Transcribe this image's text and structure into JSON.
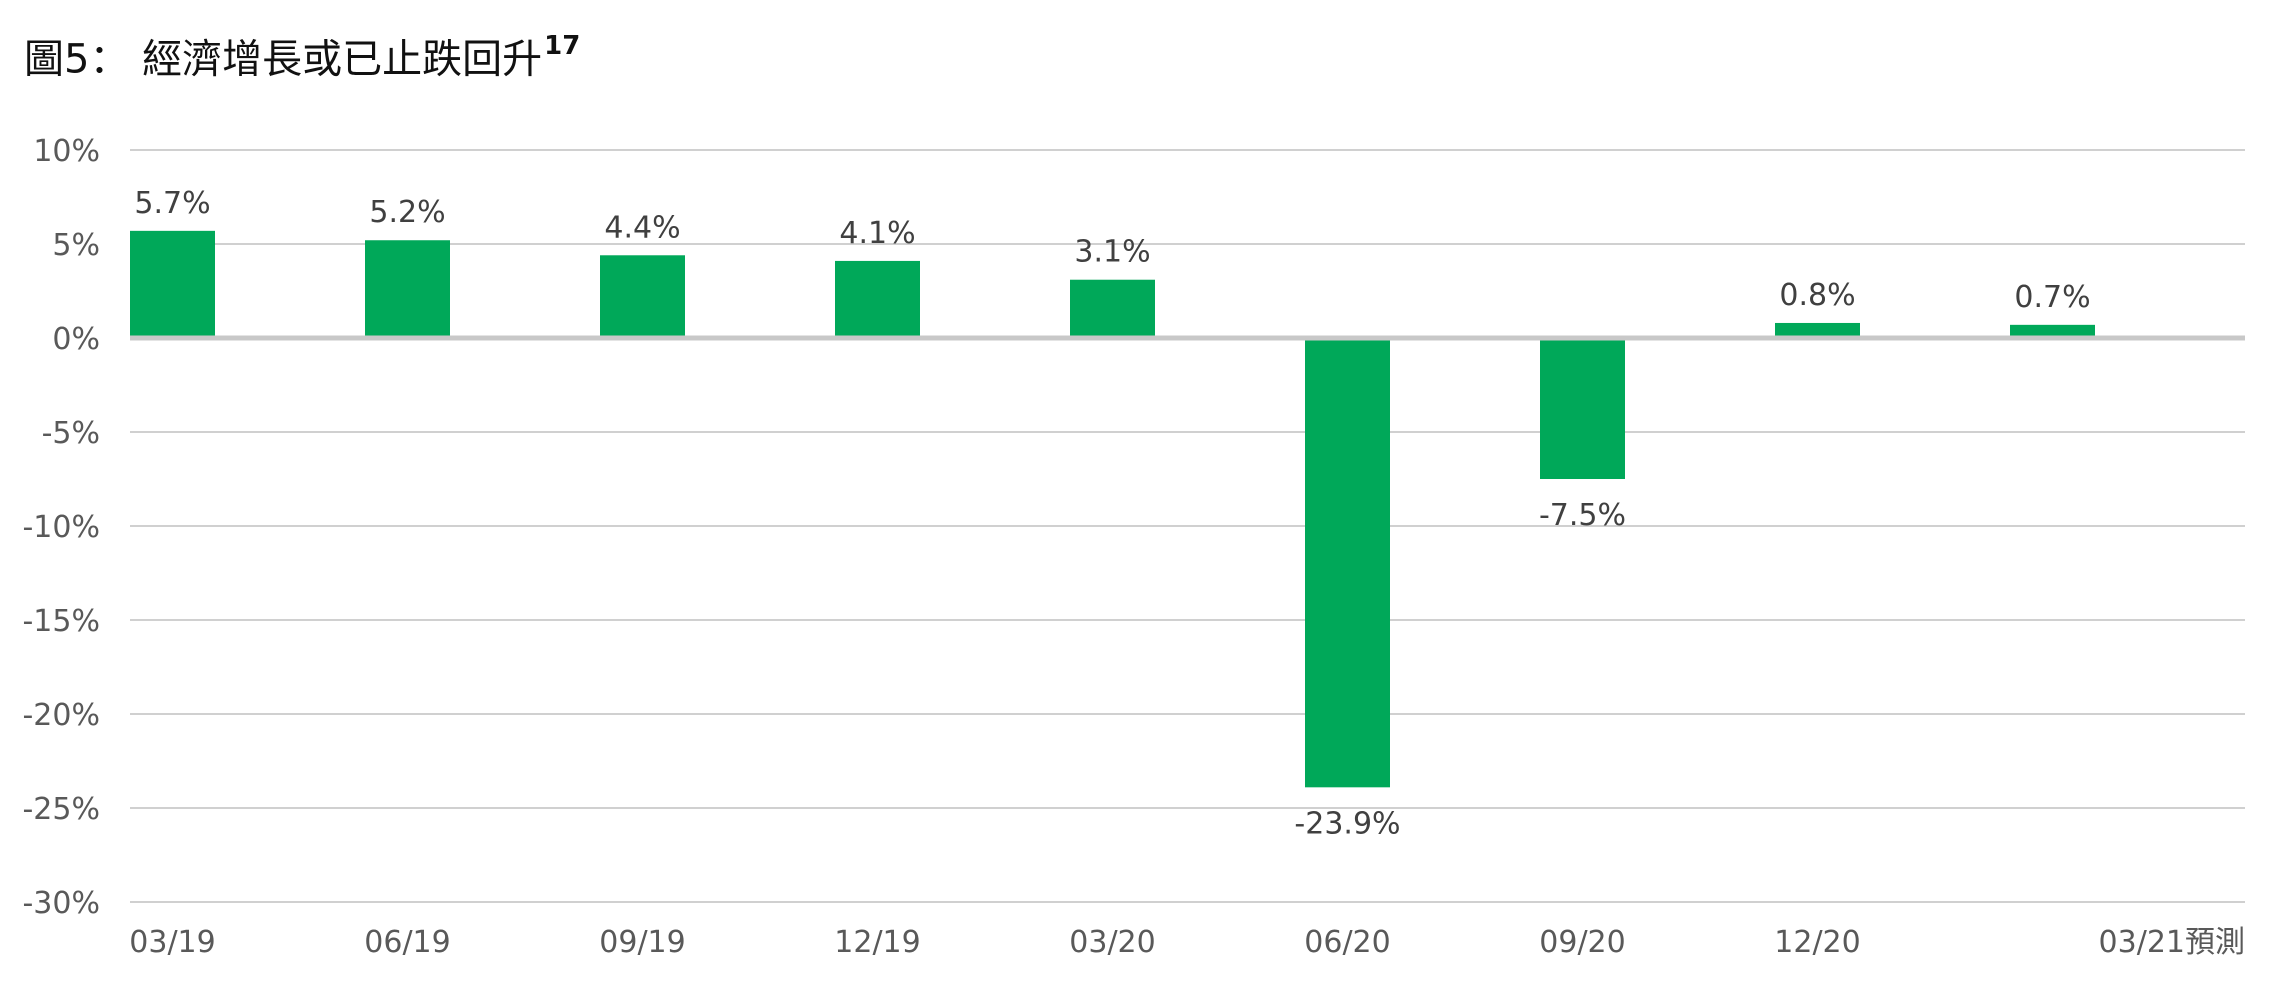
{
  "title": {
    "text": "圖5： 經濟增長或已止跌回升",
    "footnote": "17"
  },
  "colors": {
    "bar": "#00a859",
    "grid": "#d0d0d0",
    "zero_line": "#c8c8c8",
    "tick_text": "#595959",
    "label_text": "#404040"
  },
  "chart_data": {
    "type": "bar",
    "title": "經濟增長或已止跌回升",
    "categories": [
      "03/19",
      "06/19",
      "09/19",
      "12/19",
      "03/20",
      "06/20",
      "09/20",
      "12/20",
      "03/21預測"
    ],
    "values": [
      5.7,
      5.2,
      4.4,
      4.1,
      3.1,
      -23.9,
      -7.5,
      0.8,
      0.7
    ],
    "data_labels": [
      "5.7%",
      "5.2%",
      "4.4%",
      "4.1%",
      "3.1%",
      "-23.9%",
      "-7.5%",
      "0.8%",
      "0.7%"
    ],
    "ylim": [
      -30,
      10
    ],
    "yticks": [
      10,
      5,
      0,
      -5,
      -10,
      -15,
      -20,
      -25,
      -30
    ],
    "ytick_labels": [
      "10%",
      "5%",
      "0%",
      "-5%",
      "-10%",
      "-15%",
      "-20%",
      "-25%",
      "-30%"
    ],
    "xlabel": "",
    "ylabel": "",
    "grid": true,
    "legend": false
  }
}
